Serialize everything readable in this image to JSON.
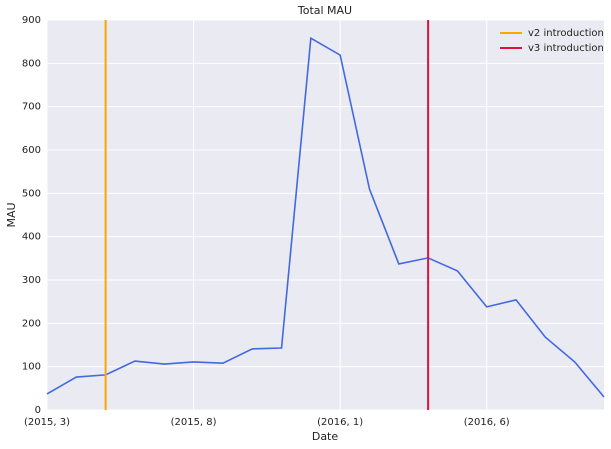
{
  "chart_data": {
    "type": "line",
    "title": "Total MAU",
    "xlabel": "Date",
    "ylabel": "MAU",
    "categories": [
      "(2015, 3)",
      null,
      null,
      null,
      null,
      "(2015, 8)",
      null,
      null,
      null,
      null,
      "(2016, 1)",
      null,
      null,
      null,
      null,
      "(2016, 6)",
      null,
      null,
      null,
      null
    ],
    "series": [
      {
        "name": "Total MAU",
        "color": "#4169e1",
        "values": [
          37,
          76,
          81,
          113,
          106,
          111,
          108,
          141,
          143,
          858,
          819,
          510,
          337,
          351,
          321,
          238,
          254,
          168,
          111,
          30
        ]
      }
    ],
    "vlines": [
      {
        "name": "v2 introduction",
        "color": "#ffa500",
        "x": 2
      },
      {
        "name": "v3 introduction",
        "color": "#dc143c",
        "x": 13
      }
    ],
    "ylim": [
      0,
      900
    ],
    "yticks": [
      0,
      100,
      200,
      300,
      400,
      500,
      600,
      700,
      800,
      900
    ],
    "grid": true,
    "legend": "upper right"
  }
}
